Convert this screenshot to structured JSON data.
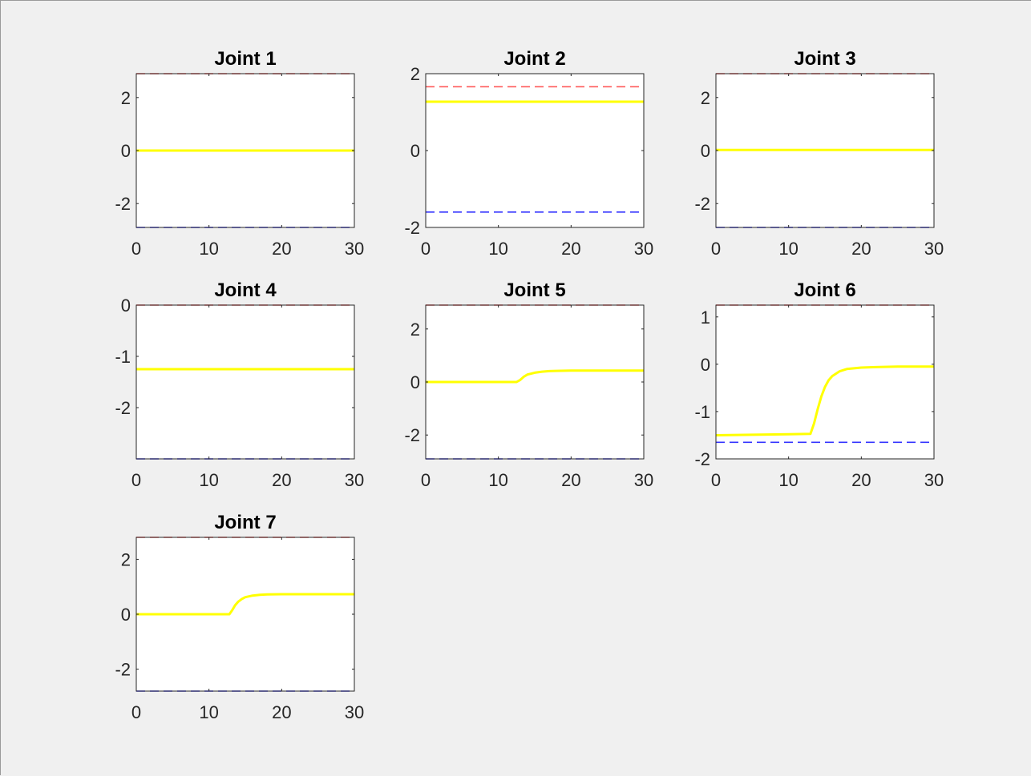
{
  "figure": {
    "background": "#f0f0f0"
  },
  "chart_data": [
    {
      "type": "line",
      "title": "Joint 1",
      "xlim": [
        0,
        30
      ],
      "ylim": [
        -2.9,
        2.9
      ],
      "xticks": [
        0,
        10,
        20,
        30
      ],
      "xtick_labels": [
        "0",
        "10",
        "20",
        "30"
      ],
      "yticks": [
        -2,
        0,
        2
      ],
      "ytick_labels": [
        "-2",
        "0",
        "2"
      ],
      "grid": false,
      "series": [
        {
          "style": "solid",
          "color": "#ffff00",
          "x": [
            0,
            30
          ],
          "y": [
            0,
            0
          ]
        },
        {
          "style": "dashed",
          "color": "#ff0000",
          "x": [
            0,
            30
          ],
          "y": [
            2.9,
            2.9
          ]
        },
        {
          "style": "dashed",
          "color": "#0000ff",
          "x": [
            0,
            30
          ],
          "y": [
            -2.9,
            -2.9
          ]
        }
      ]
    },
    {
      "type": "line",
      "title": "Joint 2",
      "xlim": [
        0,
        30
      ],
      "ylim": [
        -2,
        2
      ],
      "xticks": [
        0,
        10,
        20,
        30
      ],
      "xtick_labels": [
        "0",
        "10",
        "20",
        "30"
      ],
      "yticks": [
        -2,
        0,
        2
      ],
      "ytick_labels": [
        "-2",
        "0",
        "2"
      ],
      "grid": false,
      "series": [
        {
          "style": "solid",
          "color": "#ffff00",
          "x": [
            0,
            30
          ],
          "y": [
            1.27,
            1.27
          ]
        },
        {
          "style": "dashed",
          "color": "#ff0000",
          "x": [
            0,
            30
          ],
          "y": [
            1.66,
            1.66
          ]
        },
        {
          "style": "dashed",
          "color": "#0000ff",
          "x": [
            0,
            30
          ],
          "y": [
            -1.6,
            -1.6
          ]
        }
      ]
    },
    {
      "type": "line",
      "title": "Joint 3",
      "xlim": [
        0,
        30
      ],
      "ylim": [
        -2.9,
        2.9
      ],
      "xticks": [
        0,
        10,
        20,
        30
      ],
      "xtick_labels": [
        "0",
        "10",
        "20",
        "30"
      ],
      "yticks": [
        -2,
        0,
        2
      ],
      "ytick_labels": [
        "-2",
        "0",
        "2"
      ],
      "grid": false,
      "series": [
        {
          "style": "solid",
          "color": "#ffff00",
          "x": [
            0,
            30
          ],
          "y": [
            0.02,
            0.02
          ]
        },
        {
          "style": "dashed",
          "color": "#ff0000",
          "x": [
            0,
            30
          ],
          "y": [
            2.9,
            2.9
          ]
        },
        {
          "style": "dashed",
          "color": "#0000ff",
          "x": [
            0,
            30
          ],
          "y": [
            -2.9,
            -2.9
          ]
        }
      ]
    },
    {
      "type": "line",
      "title": "Joint 4",
      "xlim": [
        0,
        30
      ],
      "ylim": [
        -3,
        0
      ],
      "xticks": [
        0,
        10,
        20,
        30
      ],
      "xtick_labels": [
        "0",
        "10",
        "20",
        "30"
      ],
      "yticks": [
        -2,
        -1,
        0
      ],
      "ytick_labels": [
        "-2",
        "-1",
        "0"
      ],
      "grid": false,
      "series": [
        {
          "style": "solid",
          "color": "#ffff00",
          "x": [
            0,
            30
          ],
          "y": [
            -1.25,
            -1.25
          ]
        },
        {
          "style": "dashed",
          "color": "#ff0000",
          "x": [
            0,
            30
          ],
          "y": [
            0,
            0
          ]
        },
        {
          "style": "dashed",
          "color": "#0000ff",
          "x": [
            0,
            30
          ],
          "y": [
            -3,
            -3
          ]
        }
      ]
    },
    {
      "type": "line",
      "title": "Joint 5",
      "xlim": [
        0,
        30
      ],
      "ylim": [
        -2.9,
        2.9
      ],
      "xticks": [
        0,
        10,
        20,
        30
      ],
      "xtick_labels": [
        "0",
        "10",
        "20",
        "30"
      ],
      "yticks": [
        -2,
        0,
        2
      ],
      "ytick_labels": [
        "-2",
        "0",
        "2"
      ],
      "grid": false,
      "series": [
        {
          "style": "solid",
          "color": "#ffff00",
          "x": [
            0,
            5,
            10,
            12.5,
            13,
            13.5,
            14,
            15,
            16,
            17,
            18,
            20,
            22,
            25,
            30
          ],
          "y": [
            0,
            0,
            0,
            0,
            0.08,
            0.2,
            0.28,
            0.35,
            0.39,
            0.41,
            0.42,
            0.43,
            0.43,
            0.43,
            0.43
          ]
        },
        {
          "style": "dashed",
          "color": "#ff0000",
          "x": [
            0,
            30
          ],
          "y": [
            2.9,
            2.9
          ]
        },
        {
          "style": "dashed",
          "color": "#0000ff",
          "x": [
            0,
            30
          ],
          "y": [
            -2.9,
            -2.9
          ]
        }
      ]
    },
    {
      "type": "line",
      "title": "Joint 6",
      "xlim": [
        0,
        30
      ],
      "ylim": [
        -2,
        1.25
      ],
      "xticks": [
        0,
        10,
        20,
        30
      ],
      "xtick_labels": [
        "0",
        "10",
        "20",
        "30"
      ],
      "yticks": [
        -2,
        -1,
        0,
        1
      ],
      "ytick_labels": [
        "-2",
        "-1",
        "0",
        "1"
      ],
      "grid": false,
      "series": [
        {
          "style": "solid",
          "color": "#ffff00",
          "x": [
            0,
            5,
            10,
            13,
            13.5,
            14,
            14.5,
            15,
            15.5,
            16,
            17,
            18,
            20,
            22,
            25,
            30
          ],
          "y": [
            -1.5,
            -1.49,
            -1.48,
            -1.47,
            -1.25,
            -0.95,
            -0.68,
            -0.48,
            -0.34,
            -0.25,
            -0.15,
            -0.1,
            -0.07,
            -0.06,
            -0.05,
            -0.05
          ]
        },
        {
          "style": "dashed",
          "color": "#ff0000",
          "x": [
            0,
            30
          ],
          "y": [
            1.25,
            1.25
          ]
        },
        {
          "style": "dashed",
          "color": "#0000ff",
          "x": [
            0,
            30
          ],
          "y": [
            -1.65,
            -1.65
          ]
        }
      ]
    },
    {
      "type": "line",
      "title": "Joint 7",
      "xlim": [
        0,
        30
      ],
      "ylim": [
        -2.8,
        2.8
      ],
      "xticks": [
        0,
        10,
        20,
        30
      ],
      "xtick_labels": [
        "0",
        "10",
        "20",
        "30"
      ],
      "yticks": [
        -2,
        0,
        2
      ],
      "ytick_labels": [
        "-2",
        "0",
        "2"
      ],
      "grid": false,
      "series": [
        {
          "style": "solid",
          "color": "#ffff00",
          "x": [
            0,
            5,
            10,
            12.8,
            13.2,
            13.6,
            14,
            14.5,
            15,
            16,
            17,
            18,
            20,
            22,
            25,
            30
          ],
          "y": [
            0,
            0,
            0,
            0,
            0.15,
            0.33,
            0.45,
            0.55,
            0.62,
            0.68,
            0.71,
            0.72,
            0.73,
            0.73,
            0.73,
            0.73
          ]
        },
        {
          "style": "dashed",
          "color": "#ff0000",
          "x": [
            0,
            30
          ],
          "y": [
            2.8,
            2.8
          ]
        },
        {
          "style": "dashed",
          "color": "#0000ff",
          "x": [
            0,
            30
          ],
          "y": [
            -2.8,
            -2.8
          ]
        }
      ]
    }
  ]
}
